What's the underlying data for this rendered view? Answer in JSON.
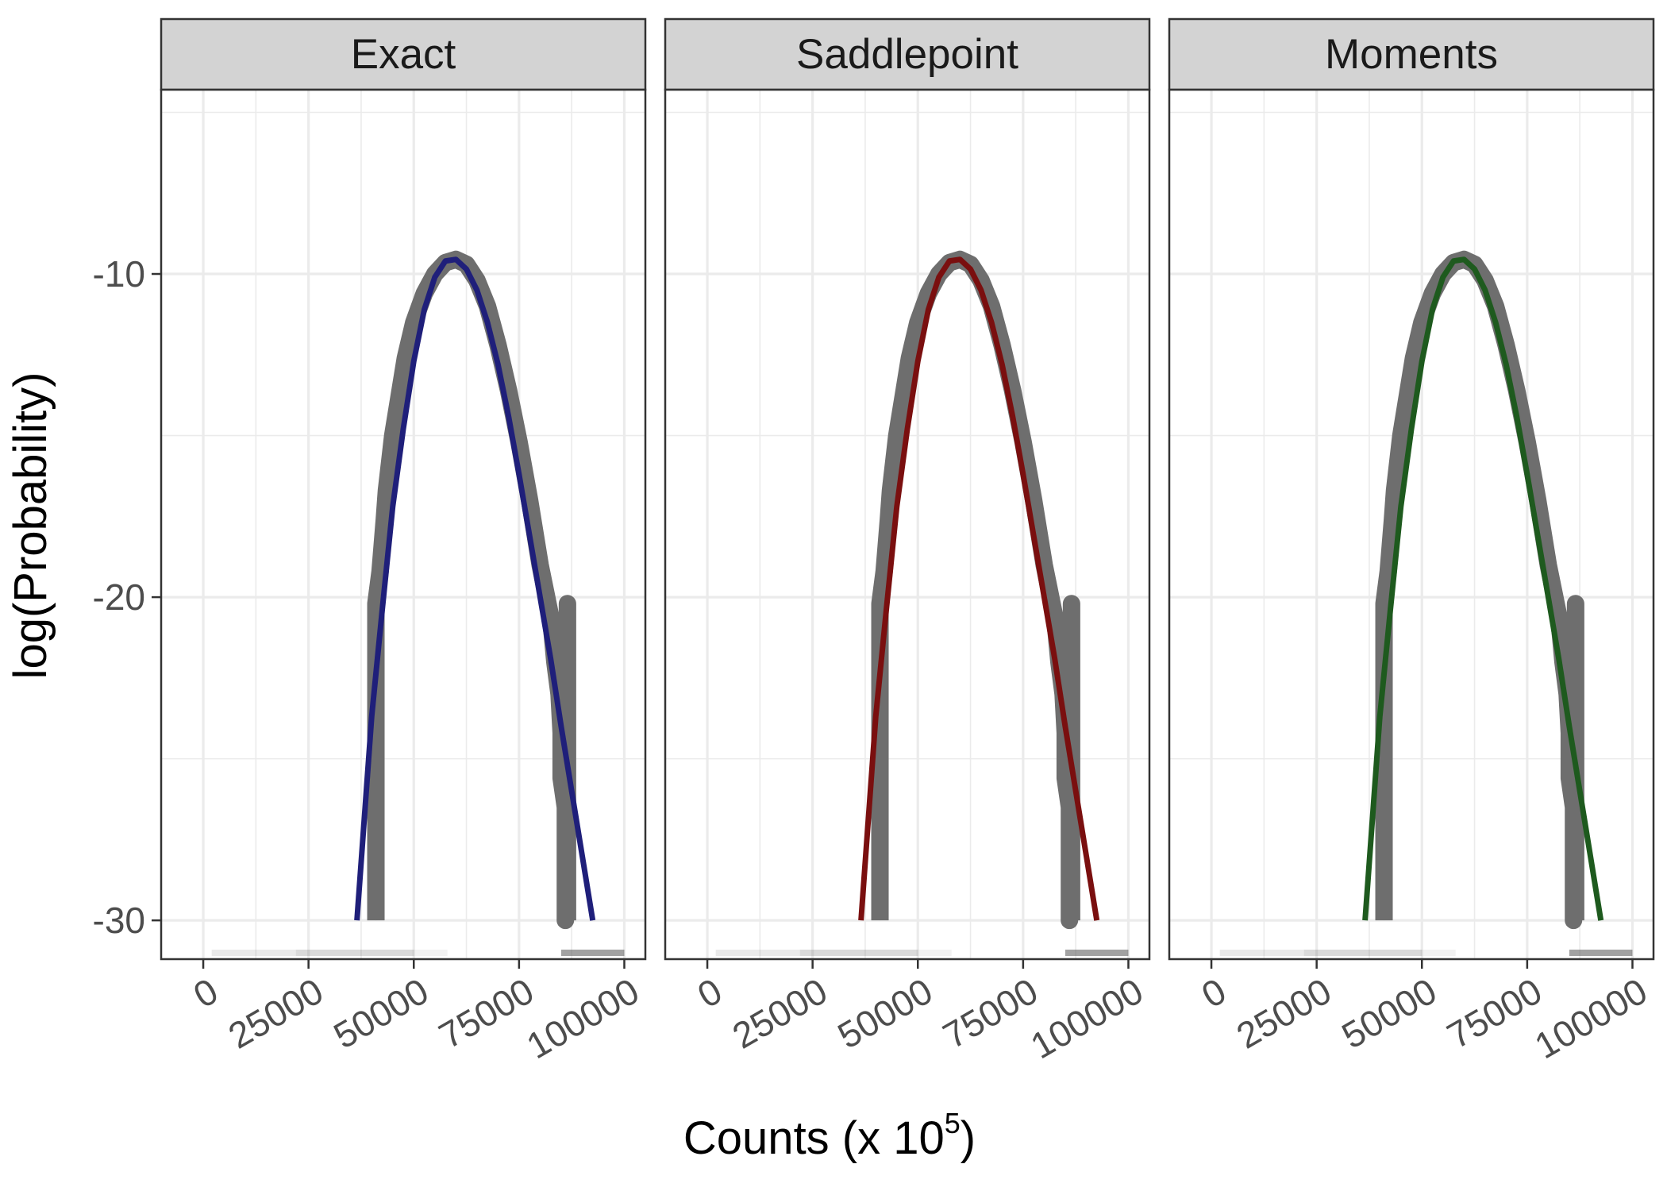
{
  "chart_data": {
    "type": "line",
    "facets": [
      "Exact",
      "Saddlepoint",
      "Moments"
    ],
    "xlabel": "Counts (x 10",
    "xlabel_superscript": "5",
    "xlabel_suffix": ")",
    "ylabel": "log(Probability)",
    "xlim": [
      -10000,
      105000
    ],
    "ylim": [
      -31.2,
      -4.3
    ],
    "x_ticks": [
      0,
      25000,
      50000,
      75000,
      100000
    ],
    "x_tick_labels": [
      "0",
      "25000",
      "50000",
      "75000",
      "100000"
    ],
    "y_ticks": [
      -10,
      -20,
      -30
    ],
    "y_tick_labels": [
      "-10",
      "-20",
      "-30"
    ],
    "grid": true,
    "observed": {
      "color": "#6e6e6e",
      "x": [
        41000,
        41000,
        42000,
        43000,
        43500,
        45000,
        46500,
        48000,
        50000,
        52500,
        55000,
        57500,
        60000,
        62500,
        65000,
        67500,
        70000,
        72500,
        75000,
        77500,
        80000,
        82500,
        83500,
        84500,
        85000,
        85000,
        86000,
        86000,
        86500,
        86500
      ],
      "y": [
        -30.0,
        -20.2,
        -19.2,
        -17.6,
        -16.7,
        -15.0,
        -13.8,
        -12.6,
        -11.5,
        -10.6,
        -10.0,
        -9.65,
        -9.55,
        -9.7,
        -10.2,
        -11.0,
        -12.2,
        -13.6,
        -15.2,
        -17.0,
        -19.0,
        -20.6,
        -22.0,
        -23.0,
        -24.2,
        -25.6,
        -26.5,
        -30.0,
        -20.2,
        -30.0
      ]
    },
    "series": [
      {
        "facet": "Exact",
        "color": "#1f1f7a",
        "x": [
          36500,
          40000,
          42500,
          45000,
          47500,
          50000,
          52500,
          55000,
          57500,
          60000,
          62500,
          65000,
          67500,
          70000,
          72500,
          75000,
          77500,
          80000,
          82500,
          85000,
          87500,
          90000,
          92500
        ],
        "y": [
          -30.0,
          -23.7,
          -20.4,
          -17.2,
          -14.8,
          -12.7,
          -11.1,
          -10.1,
          -9.6,
          -9.55,
          -9.85,
          -10.5,
          -11.5,
          -12.8,
          -14.4,
          -16.2,
          -18.1,
          -20.0,
          -21.9,
          -24.0,
          -26.0,
          -28.0,
          -30.0
        ]
      },
      {
        "facet": "Saddlepoint",
        "color": "#7a0f0f",
        "x": [
          36500,
          40000,
          42500,
          45000,
          47500,
          50000,
          52500,
          55000,
          57500,
          60000,
          62500,
          65000,
          67500,
          70000,
          72500,
          75000,
          77500,
          80000,
          82500,
          85000,
          87500,
          90000,
          92500
        ],
        "y": [
          -30.0,
          -23.7,
          -20.4,
          -17.2,
          -14.8,
          -12.7,
          -11.1,
          -10.1,
          -9.6,
          -9.55,
          -9.85,
          -10.5,
          -11.5,
          -12.8,
          -14.4,
          -16.2,
          -18.1,
          -20.0,
          -21.9,
          -24.0,
          -26.0,
          -28.0,
          -30.0
        ]
      },
      {
        "facet": "Moments",
        "color": "#1e5a1e",
        "x": [
          36500,
          40000,
          42500,
          45000,
          47500,
          50000,
          52500,
          55000,
          57500,
          60000,
          62500,
          65000,
          67500,
          70000,
          72500,
          75000,
          77500,
          80000,
          82500,
          85000,
          87500,
          90000,
          92500
        ],
        "y": [
          -30.0,
          -23.7,
          -20.4,
          -17.2,
          -14.8,
          -12.7,
          -11.1,
          -10.1,
          -9.6,
          -9.55,
          -9.85,
          -10.5,
          -11.5,
          -12.8,
          -14.4,
          -16.2,
          -18.1,
          -20.0,
          -21.9,
          -24.0,
          -26.0,
          -28.0,
          -30.0
        ]
      }
    ]
  }
}
